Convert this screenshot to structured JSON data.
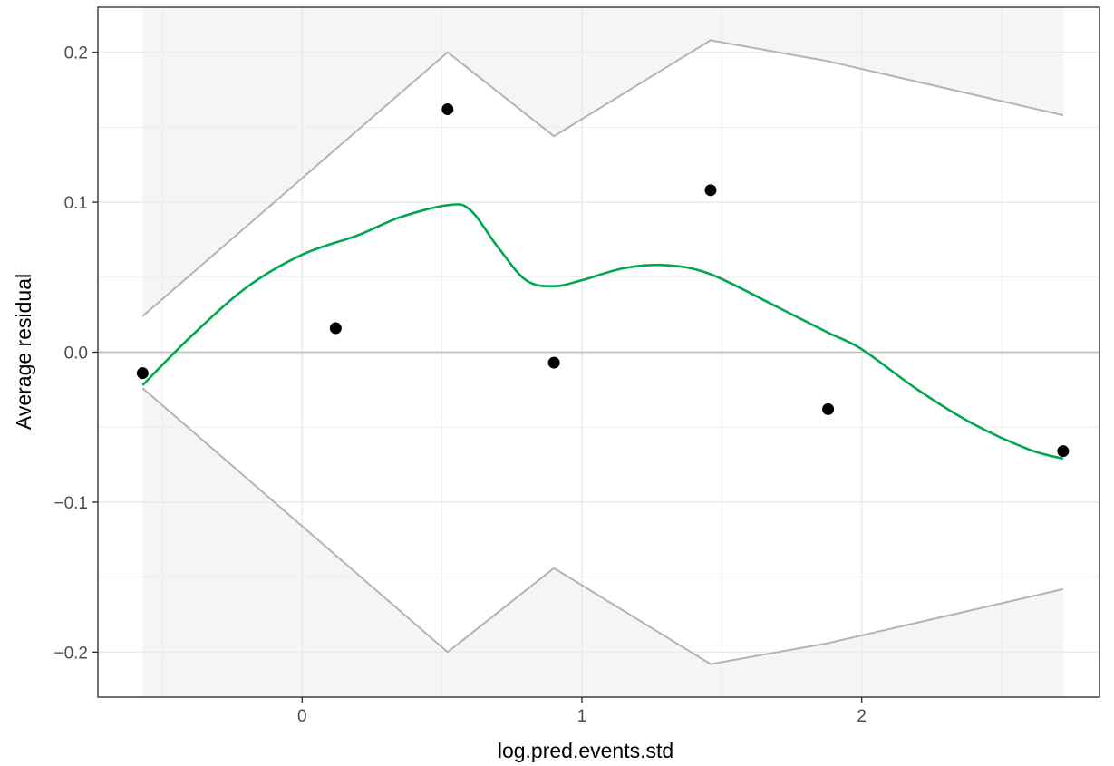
{
  "chart_data": {
    "type": "scatter",
    "title": "",
    "xlabel": "log.pred.events.std",
    "ylabel": "Average residual",
    "xlim": [
      -0.73,
      2.85
    ],
    "ylim": [
      -0.23,
      0.23
    ],
    "x_ticks": [
      0,
      1,
      2
    ],
    "x_tick_labels": [
      "0",
      "1",
      "2"
    ],
    "y_ticks": [
      -0.2,
      -0.1,
      0.0,
      0.1,
      0.2
    ],
    "y_tick_labels": [
      "−0.2",
      "−0.1",
      "0.0",
      "0.1",
      "0.2"
    ],
    "grid": true,
    "legend": "none",
    "reference_line_y": 0,
    "points": {
      "x": [
        -0.57,
        0.12,
        0.52,
        0.9,
        1.46,
        1.88,
        2.72
      ],
      "y": [
        -0.014,
        0.016,
        0.162,
        -0.007,
        0.108,
        -0.038,
        -0.066
      ]
    },
    "envelope": {
      "x": [
        -0.57,
        0.52,
        0.9,
        1.46,
        1.88,
        2.72
      ],
      "upper": [
        0.024,
        0.2,
        0.144,
        0.208,
        0.194,
        0.158
      ],
      "lower": [
        -0.024,
        -0.2,
        -0.144,
        -0.208,
        -0.194,
        -0.158
      ]
    },
    "smooth": {
      "x": [
        -0.57,
        -0.4,
        -0.2,
        0.0,
        0.2,
        0.35,
        0.52,
        0.6,
        0.7,
        0.8,
        0.9,
        1.0,
        1.15,
        1.3,
        1.46,
        1.7,
        1.88,
        2.0,
        2.2,
        2.4,
        2.6,
        2.72
      ],
      "y": [
        -0.022,
        0.01,
        0.043,
        0.065,
        0.078,
        0.09,
        0.098,
        0.095,
        0.07,
        0.048,
        0.044,
        0.048,
        0.056,
        0.058,
        0.052,
        0.03,
        0.013,
        0.002,
        -0.025,
        -0.048,
        -0.065,
        -0.071
      ]
    },
    "colors": {
      "points": "#000000",
      "smooth": "#00a650",
      "envelope": "#b3b3b3",
      "envelope_fill": "#f5f5f5",
      "grid": "#ebebeb",
      "zero_line": "#bdbdbd",
      "panel_border": "#333333"
    }
  }
}
